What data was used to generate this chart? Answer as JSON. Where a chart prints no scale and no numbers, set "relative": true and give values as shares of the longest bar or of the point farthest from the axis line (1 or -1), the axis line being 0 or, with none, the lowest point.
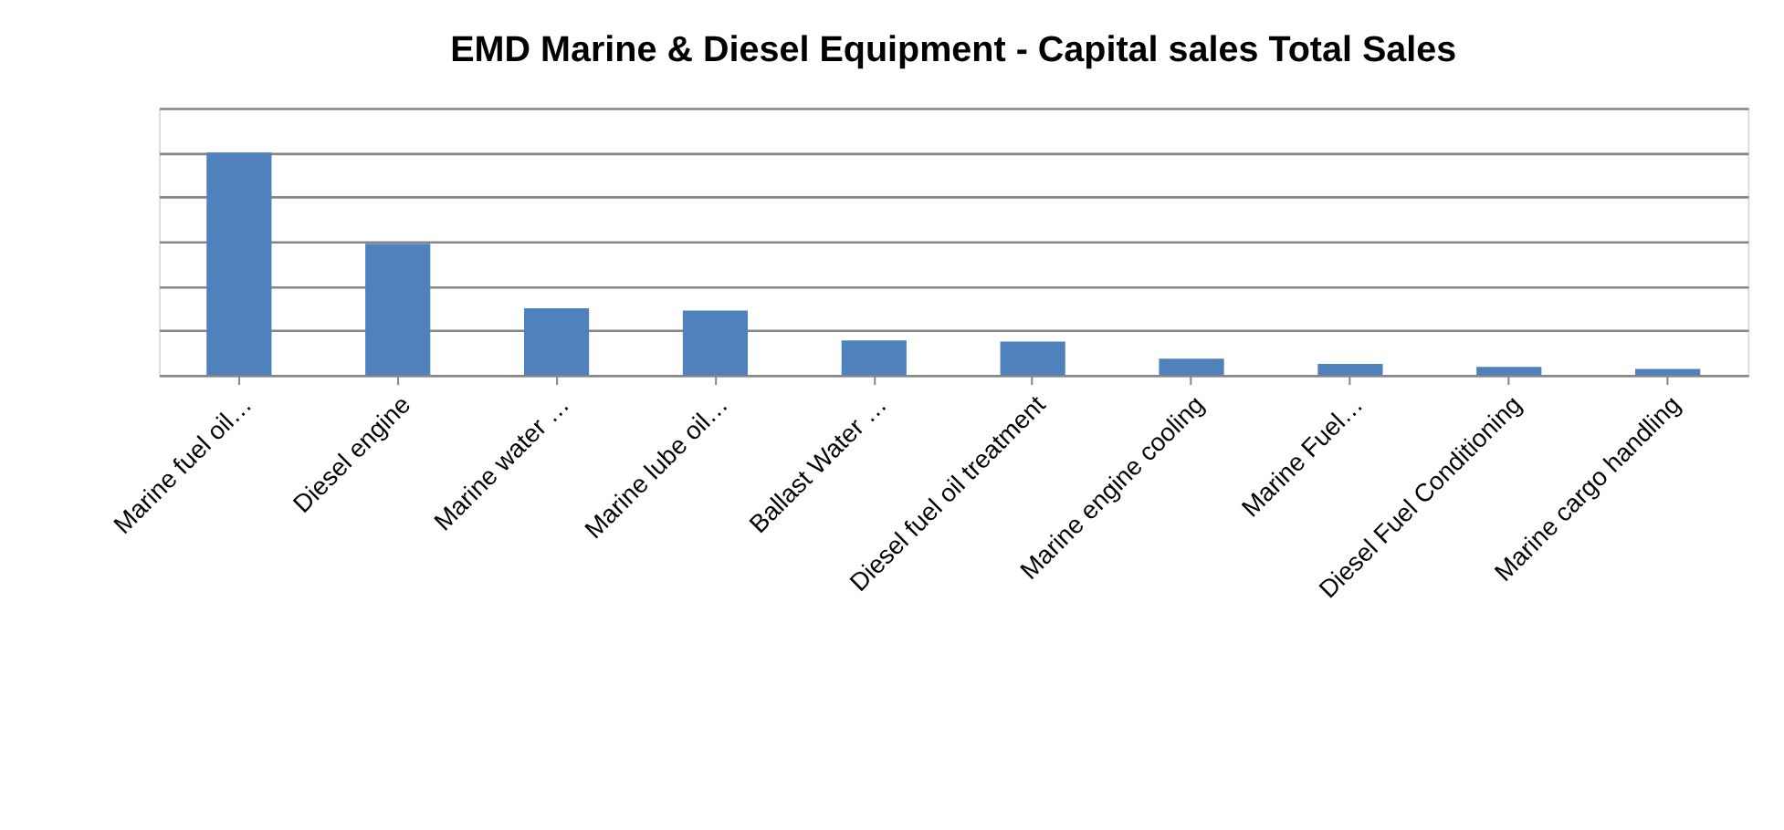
{
  "chart_data": {
    "type": "bar",
    "title": "EMD Marine & Diesel Equipment - Capital sales Total Sales",
    "categories": [
      "Marine fuel oil…",
      "Diesel engine",
      "Marine water …",
      "Marine lube oil…",
      "Ballast Water …",
      "Diesel fuel oil treatment",
      "Marine engine cooling",
      "Marine Fuel…",
      "Diesel Fuel Conditioning",
      "Marine cargo handling"
    ],
    "values": [
      1,
      0.59,
      0.3,
      0.29,
      0.155,
      0.15,
      0.073,
      0.05,
      0.037,
      0.027
    ],
    "color": "#4f81bd",
    "relative": true,
    "grid": "y"
  }
}
